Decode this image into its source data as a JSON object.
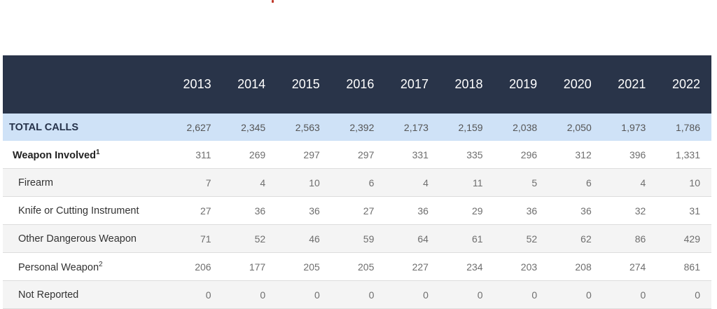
{
  "table": {
    "years": [
      "2013",
      "2014",
      "2015",
      "2016",
      "2017",
      "2018",
      "2019",
      "2020",
      "2021",
      "2022"
    ],
    "rows": [
      {
        "label": "TOTAL CALLS",
        "sup": "",
        "values": [
          "2,627",
          "2,345",
          "2,563",
          "2,392",
          "2,173",
          "2,159",
          "2,038",
          "2,050",
          "1,973",
          "1,786"
        ]
      },
      {
        "label": "Weapon Involved",
        "sup": "1",
        "values": [
          "311",
          "269",
          "297",
          "297",
          "331",
          "335",
          "296",
          "312",
          "396",
          "1,331"
        ]
      },
      {
        "label": "Firearm",
        "sup": "",
        "values": [
          "7",
          "4",
          "10",
          "6",
          "4",
          "11",
          "5",
          "6",
          "4",
          "10"
        ]
      },
      {
        "label": "Knife or Cutting Instrument",
        "sup": "",
        "values": [
          "27",
          "36",
          "36",
          "27",
          "36",
          "29",
          "36",
          "36",
          "32",
          "31"
        ]
      },
      {
        "label": "Other Dangerous Weapon",
        "sup": "",
        "values": [
          "71",
          "52",
          "46",
          "59",
          "64",
          "61",
          "52",
          "62",
          "86",
          "429"
        ]
      },
      {
        "label": "Personal Weapon",
        "sup": "2",
        "values": [
          "206",
          "177",
          "205",
          "205",
          "227",
          "234",
          "203",
          "208",
          "274",
          "861"
        ]
      },
      {
        "label": "Not Reported",
        "sup": "",
        "values": [
          "0",
          "0",
          "0",
          "0",
          "0",
          "0",
          "0",
          "0",
          "0",
          "0"
        ]
      }
    ]
  },
  "colors": {
    "header_bg": "#293449",
    "total_bg": "#cfe2f7",
    "alt_row_bg": "#f4f4f4"
  }
}
